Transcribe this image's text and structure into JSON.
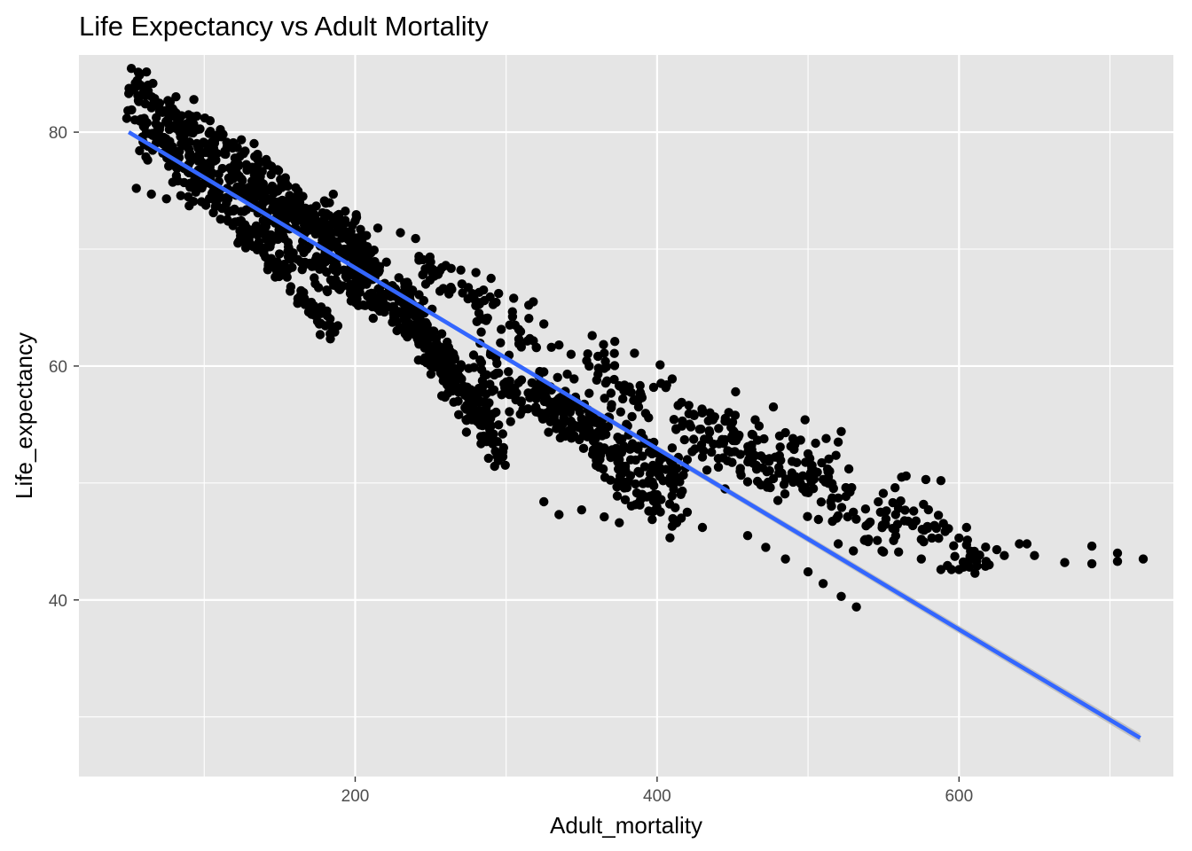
{
  "chart_data": {
    "type": "scatter",
    "title": "Life Expectancy vs Adult Mortality",
    "xlabel": "Adult_mortality",
    "ylabel": "Life_expectancy",
    "xlim": [
      17,
      742
    ],
    "ylim": [
      24.9,
      86.6
    ],
    "x_ticks": [
      200,
      400,
      600
    ],
    "y_ticks": [
      40,
      60,
      80
    ],
    "grid": true,
    "colors": {
      "panel": "#e5e5e5",
      "grid": "#ffffff",
      "points": "#000000",
      "trend": "#3366ff",
      "ribbon": "#b3b3b3"
    },
    "trend_line": {
      "x": [
        50,
        720
      ],
      "y": [
        80.0,
        28.2
      ]
    },
    "clusters": [
      {
        "x1": 50,
        "y1": 83.5,
        "x2": 200,
        "y2": 71.0,
        "n": 260,
        "spread": 2.4
      },
      {
        "x1": 60,
        "y1": 80.0,
        "x2": 210,
        "y2": 69.0,
        "n": 260,
        "spread": 2.0
      },
      {
        "x1": 80,
        "y1": 76.5,
        "x2": 230,
        "y2": 64.0,
        "n": 200,
        "spread": 1.6
      },
      {
        "x1": 120,
        "y1": 72.0,
        "x2": 185,
        "y2": 63.0,
        "n": 90,
        "spread": 1.0
      },
      {
        "x1": 200,
        "y1": 70.0,
        "x2": 290,
        "y2": 55.0,
        "n": 220,
        "spread": 2.4
      },
      {
        "x1": 230,
        "y1": 66.0,
        "x2": 300,
        "y2": 52.0,
        "n": 150,
        "spread": 2.0
      },
      {
        "x1": 240,
        "y1": 69.0,
        "x2": 320,
        "y2": 62.0,
        "n": 60,
        "spread": 1.6
      },
      {
        "x1": 280,
        "y1": 60.0,
        "x2": 420,
        "y2": 50.0,
        "n": 200,
        "spread": 2.6
      },
      {
        "x1": 320,
        "y1": 58.0,
        "x2": 410,
        "y2": 47.0,
        "n": 100,
        "spread": 2.2
      },
      {
        "x1": 350,
        "y1": 61.0,
        "x2": 480,
        "y2": 51.0,
        "n": 90,
        "spread": 2.2
      },
      {
        "x1": 420,
        "y1": 55.0,
        "x2": 530,
        "y2": 49.0,
        "n": 70,
        "spread": 2.8
      },
      {
        "x1": 480,
        "y1": 53.0,
        "x2": 560,
        "y2": 44.5,
        "n": 50,
        "spread": 2.4
      },
      {
        "x1": 550,
        "y1": 48.0,
        "x2": 620,
        "y2": 43.0,
        "n": 45,
        "spread": 1.8
      }
    ],
    "points": [
      [
        50,
        83.3
      ],
      [
        52,
        83.6
      ],
      [
        55,
        83.9
      ],
      [
        60,
        83.5
      ],
      [
        70,
        82.4
      ],
      [
        80,
        81.8
      ],
      [
        85,
        81.4
      ],
      [
        90,
        80.6
      ],
      [
        55,
        75.2
      ],
      [
        65,
        74.7
      ],
      [
        75,
        74.3
      ],
      [
        90,
        73.7
      ],
      [
        200,
        72.4
      ],
      [
        215,
        71.8
      ],
      [
        230,
        71.4
      ],
      [
        240,
        70.9
      ],
      [
        245,
        69.1
      ],
      [
        250,
        68.9
      ],
      [
        260,
        68.6
      ],
      [
        270,
        68.2
      ],
      [
        280,
        68.0
      ],
      [
        290,
        67.5
      ],
      [
        285,
        66.5
      ],
      [
        295,
        66.2
      ],
      [
        305,
        65.8
      ],
      [
        315,
        65.2
      ],
      [
        318,
        65.5
      ],
      [
        325,
        63.6
      ],
      [
        335,
        61.8
      ],
      [
        330,
        61.6
      ],
      [
        343,
        61.0
      ],
      [
        355,
        60.0
      ],
      [
        357,
        62.6
      ],
      [
        372,
        62.1
      ],
      [
        365,
        59.8
      ],
      [
        385,
        61.1
      ],
      [
        402,
        60.1
      ],
      [
        410,
        58.9
      ],
      [
        380,
        58.2
      ],
      [
        390,
        57.3
      ],
      [
        320,
        61.6
      ],
      [
        295,
        59.4
      ],
      [
        325,
        59.5
      ],
      [
        345,
        58.9
      ],
      [
        360,
        58.8
      ],
      [
        378,
        57.9
      ],
      [
        355,
        54.6
      ],
      [
        365,
        53.0
      ],
      [
        375,
        52.0
      ],
      [
        395,
        53.4
      ],
      [
        410,
        53.0
      ],
      [
        420,
        52.0
      ],
      [
        433,
        51.1
      ],
      [
        435,
        56.0
      ],
      [
        437,
        55.4
      ],
      [
        450,
        55.2
      ],
      [
        452,
        57.8
      ],
      [
        465,
        55.4
      ],
      [
        477,
        56.5
      ],
      [
        485,
        54.3
      ],
      [
        490,
        53.8
      ],
      [
        498,
        55.4
      ],
      [
        505,
        53.4
      ],
      [
        512,
        53.8
      ],
      [
        520,
        53.5
      ],
      [
        522,
        54.4
      ],
      [
        500,
        52.5
      ],
      [
        470,
        51.3
      ],
      [
        475,
        49.6
      ],
      [
        455,
        51.0
      ],
      [
        460,
        50.1
      ],
      [
        445,
        49.5
      ],
      [
        480,
        48.5
      ],
      [
        500,
        49.3
      ],
      [
        510,
        50.3
      ],
      [
        515,
        48.4
      ],
      [
        520,
        47.2
      ],
      [
        527,
        51.2
      ],
      [
        530,
        47.5
      ],
      [
        540,
        46.5
      ],
      [
        548,
        47.5
      ],
      [
        558,
        47.3
      ],
      [
        562,
        50.5
      ],
      [
        565,
        50.6
      ],
      [
        578,
        50.3
      ],
      [
        570,
        47.6
      ],
      [
        588,
        50.2
      ],
      [
        593,
        46.1
      ],
      [
        600,
        45.3
      ],
      [
        605,
        44.7
      ],
      [
        605,
        46.2
      ],
      [
        608,
        44.0
      ],
      [
        612,
        42.9
      ],
      [
        618,
        43.3
      ],
      [
        625,
        44.3
      ],
      [
        630,
        43.8
      ],
      [
        640,
        44.8
      ],
      [
        645,
        44.8
      ],
      [
        650,
        43.8
      ],
      [
        670,
        43.2
      ],
      [
        688,
        44.6
      ],
      [
        688,
        43.1
      ],
      [
        705,
        44.0
      ],
      [
        705,
        43.3
      ],
      [
        722,
        43.5
      ],
      [
        550,
        44.1
      ],
      [
        560,
        44.1
      ],
      [
        575,
        43.5
      ],
      [
        582,
        45.3
      ],
      [
        588,
        42.6
      ],
      [
        595,
        42.6
      ],
      [
        600,
        42.6
      ],
      [
        603,
        42.8
      ],
      [
        607,
        42.8
      ],
      [
        620,
        43.0
      ],
      [
        325,
        48.4
      ],
      [
        335,
        47.3
      ],
      [
        350,
        47.7
      ],
      [
        365,
        47.1
      ],
      [
        375,
        46.6
      ],
      [
        410,
        46.3
      ],
      [
        413,
        46.6
      ],
      [
        416,
        47.0
      ],
      [
        420,
        47.5
      ],
      [
        430,
        46.2
      ],
      [
        460,
        45.5
      ],
      [
        472,
        44.5
      ],
      [
        485,
        43.5
      ],
      [
        500,
        42.4
      ],
      [
        510,
        41.4
      ],
      [
        522,
        40.3
      ],
      [
        532,
        39.4
      ],
      [
        520,
        44.8
      ],
      [
        530,
        44.2
      ],
      [
        540,
        45.2
      ],
      [
        549,
        44.2
      ]
    ]
  }
}
